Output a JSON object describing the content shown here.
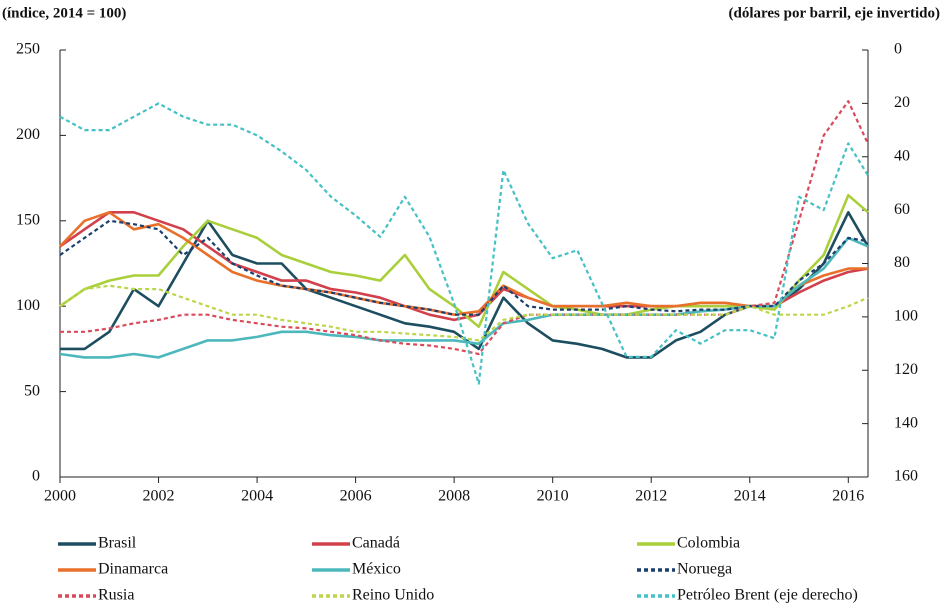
{
  "chart_data": {
    "type": "line",
    "y_label": "(índice, 2014 = 100)",
    "y2_label": "(dólares por barril, eje invertido)",
    "x": [
      2000,
      2000.5,
      2001,
      2001.5,
      2002,
      2002.5,
      2003,
      2003.5,
      2004,
      2004.5,
      2005,
      2005.5,
      2006,
      2006.5,
      2007,
      2007.5,
      2008,
      2008.5,
      2009,
      2009.5,
      2010,
      2010.5,
      2011,
      2011.5,
      2012,
      2012.5,
      2013,
      2013.5,
      2014,
      2014.5,
      2015,
      2015.5,
      2016,
      2016.4
    ],
    "xlim": [
      2000,
      2016.4
    ],
    "xticks": [
      2000,
      2002,
      2004,
      2006,
      2008,
      2010,
      2012,
      2014,
      2016
    ],
    "ylim": [
      0,
      250
    ],
    "yticks": [
      0,
      50,
      100,
      150,
      200,
      250
    ],
    "y2lim": [
      0,
      160
    ],
    "y2ticks": [
      0,
      20,
      40,
      60,
      80,
      100,
      120,
      140,
      160
    ],
    "y2_inverted": true,
    "grid": false,
    "series": [
      {
        "name": "Brasil",
        "color": "#1d4e60",
        "dash": false,
        "values": [
          75,
          75,
          85,
          110,
          100,
          125,
          150,
          130,
          125,
          125,
          110,
          105,
          100,
          95,
          90,
          88,
          85,
          75,
          105,
          90,
          80,
          78,
          75,
          70,
          70,
          80,
          85,
          95,
          100,
          100,
          110,
          125,
          155,
          135
        ]
      },
      {
        "name": "Canadá",
        "color": "#d2404b",
        "dash": false,
        "values": [
          135,
          145,
          155,
          155,
          150,
          145,
          135,
          125,
          120,
          115,
          115,
          110,
          108,
          105,
          100,
          95,
          92,
          95,
          110,
          105,
          100,
          100,
          100,
          100,
          100,
          100,
          100,
          100,
          100,
          100,
          108,
          115,
          120,
          122
        ]
      },
      {
        "name": "Colombia",
        "color": "#a9cf3b",
        "dash": false,
        "values": [
          100,
          110,
          115,
          118,
          118,
          135,
          150,
          145,
          140,
          130,
          125,
          120,
          118,
          115,
          130,
          110,
          100,
          88,
          120,
          110,
          100,
          98,
          95,
          95,
          98,
          100,
          100,
          100,
          100,
          98,
          115,
          130,
          165,
          155
        ]
      },
      {
        "name": "Dinamarca",
        "color": "#e8702a",
        "dash": false,
        "values": [
          135,
          150,
          155,
          145,
          148,
          140,
          130,
          120,
          115,
          112,
          110,
          108,
          105,
          102,
          100,
          98,
          95,
          97,
          112,
          105,
          100,
          100,
          100,
          102,
          100,
          100,
          102,
          102,
          100,
          100,
          112,
          118,
          122,
          122
        ]
      },
      {
        "name": "México",
        "color": "#4db8bc",
        "dash": false,
        "values": [
          72,
          70,
          70,
          72,
          70,
          75,
          80,
          80,
          82,
          85,
          85,
          83,
          82,
          80,
          80,
          80,
          80,
          78,
          90,
          92,
          95,
          95,
          95,
          95,
          95,
          95,
          97,
          98,
          100,
          100,
          112,
          122,
          140,
          135
        ]
      },
      {
        "name": "Noruega",
        "color": "#1c3f6e",
        "dash": true,
        "values": [
          130,
          140,
          150,
          148,
          145,
          130,
          140,
          125,
          118,
          112,
          110,
          108,
          105,
          102,
          100,
          98,
          95,
          95,
          112,
          100,
          98,
          98,
          98,
          100,
          98,
          97,
          98,
          98,
          100,
          100,
          115,
          125,
          140,
          138
        ]
      },
      {
        "name": "Rusia",
        "color": "#d94a5a",
        "dash": true,
        "values": [
          85,
          85,
          87,
          90,
          92,
          95,
          95,
          92,
          90,
          88,
          87,
          85,
          83,
          80,
          78,
          77,
          75,
          72,
          90,
          95,
          95,
          95,
          95,
          95,
          95,
          95,
          95,
          95,
          100,
          102,
          150,
          200,
          220,
          195
        ]
      },
      {
        "name": "Reino Unido",
        "color": "#bcd64a",
        "dash": true,
        "values": [
          100,
          110,
          112,
          110,
          110,
          105,
          100,
          95,
          95,
          92,
          90,
          88,
          85,
          85,
          84,
          83,
          82,
          80,
          92,
          95,
          95,
          95,
          95,
          95,
          95,
          95,
          95,
          95,
          100,
          95,
          95,
          95,
          100,
          105
        ]
      },
      {
        "name": "Petróleo Brent (eje derecho)",
        "color": "#45c0c4",
        "dash": true,
        "axis": "y2",
        "values": [
          25,
          30,
          30,
          25,
          20,
          25,
          28,
          28,
          32,
          38,
          45,
          55,
          62,
          70,
          55,
          70,
          95,
          125,
          45,
          65,
          78,
          75,
          95,
          115,
          115,
          105,
          110,
          105,
          105,
          108,
          55,
          60,
          35,
          47
        ]
      }
    ]
  }
}
